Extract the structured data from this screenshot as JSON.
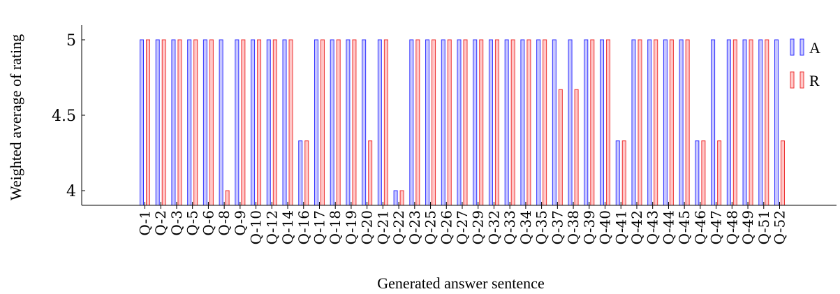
{
  "chart_data": {
    "type": "bar",
    "xlabel": "Generated answer sentence",
    "ylabel": "Weighted average of rating",
    "ylim": [
      3.9,
      5.08
    ],
    "yticks": [
      "4",
      "4.5",
      "5"
    ],
    "grid": false,
    "legend_position": "right",
    "categories": [
      "Q-1",
      "Q-2",
      "Q-3",
      "Q-5",
      "Q-6",
      "Q-8",
      "Q-9",
      "Q-10",
      "Q-12",
      "Q-14",
      "Q-16",
      "Q-17",
      "Q-18",
      "Q-19",
      "Q-20",
      "Q-21",
      "Q-22",
      "Q-23",
      "Q-25",
      "Q-26",
      "Q-27",
      "Q-29",
      "Q-32",
      "Q-33",
      "Q-34",
      "Q-35",
      "Q-37",
      "Q-38",
      "Q-39",
      "Q-40",
      "Q-41",
      "Q-42",
      "Q-43",
      "Q-44",
      "Q-45",
      "Q-46",
      "Q-47",
      "Q-48",
      "Q-49",
      "Q-51",
      "Q-52"
    ],
    "series": [
      {
        "name": "A",
        "stroke": "#3333ff",
        "fill": "#c8c8ff",
        "values": [
          5,
          5,
          5,
          5,
          5,
          5,
          5,
          5,
          5,
          5,
          4.33,
          5,
          5,
          5,
          5,
          5,
          4,
          5,
          5,
          5,
          5,
          5,
          5,
          5,
          5,
          5,
          5,
          5,
          5,
          5,
          4.33,
          5,
          5,
          5,
          5,
          4.33,
          5,
          5,
          5,
          5,
          5
        ]
      },
      {
        "name": "R",
        "stroke": "#ee3333",
        "fill": "#ffc8c8",
        "values": [
          5,
          5,
          5,
          5,
          5,
          4,
          5,
          5,
          5,
          5,
          4.33,
          5,
          5,
          5,
          4.33,
          5,
          4,
          5,
          5,
          5,
          5,
          5,
          5,
          5,
          5,
          5,
          4.67,
          4.67,
          5,
          5,
          4.33,
          5,
          5,
          5,
          5,
          4.33,
          4.33,
          5,
          5,
          5,
          4.33
        ]
      }
    ]
  }
}
